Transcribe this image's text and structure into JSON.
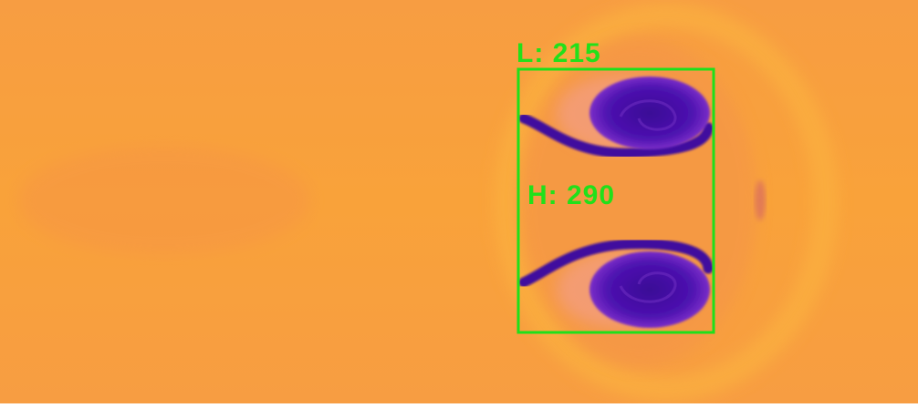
{
  "annotations": {
    "length_label": "L: 215",
    "height_label": "H: 290"
  }
}
